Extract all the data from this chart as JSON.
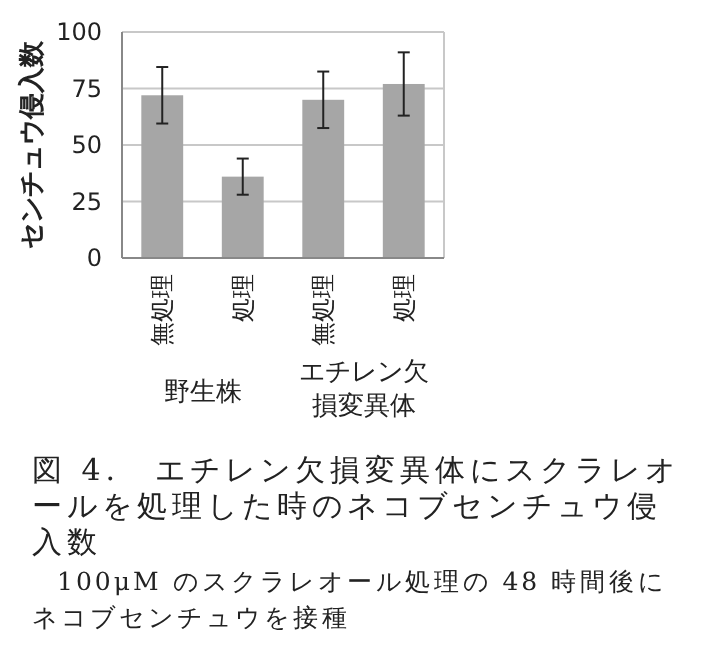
{
  "chart_data": {
    "type": "bar",
    "ylabel": "センチュウ侵入数",
    "categories": [
      "無処理",
      "処理",
      "無処理",
      "処理"
    ],
    "values": [
      72,
      36,
      70,
      77
    ],
    "errors": [
      12.5,
      8,
      12.5,
      14
    ],
    "color": "#a6a6a6",
    "ylim": [
      0,
      100
    ],
    "yticks": [
      0,
      25,
      50,
      75,
      100
    ],
    "grid": "y",
    "annotations": [
      "野生株",
      "エチレン欠損変異体",
      "図 4.　エチレン欠損変異体にスクラレオールを処理した時のネコブセンチュウ侵入数",
      "100μM のスクラレオール処理の 48 時間後にネコブセンチュウを接種"
    ]
  }
}
